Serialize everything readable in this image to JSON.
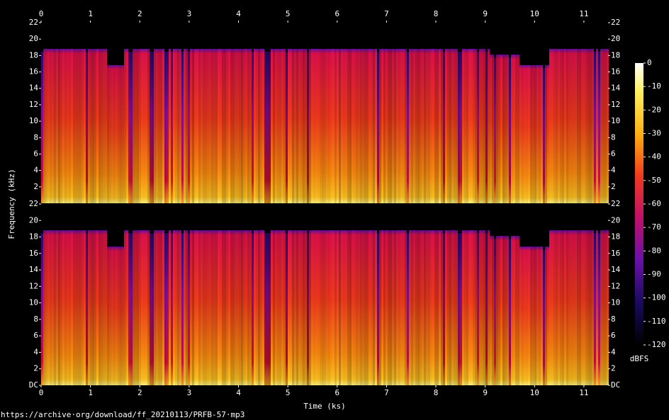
{
  "chart_data": [
    {
      "type": "spectrogram",
      "xlim": [
        0,
        11.49
      ],
      "xticks": [
        0,
        1,
        2,
        3,
        4,
        5,
        6,
        7,
        8,
        9,
        10,
        11
      ],
      "ylim": [
        0,
        22
      ],
      "yticks": [
        2,
        4,
        6,
        8,
        10,
        12,
        14,
        16,
        18,
        20,
        22
      ]
    },
    {
      "type": "spectrogram",
      "xlim": [
        0,
        11.49
      ],
      "xticks": [
        0,
        1,
        2,
        3,
        4,
        5,
        6,
        7,
        8,
        9,
        10,
        11
      ],
      "ylim": [
        0,
        22
      ],
      "yticks": [
        {
          "value": 0,
          "label": "DC"
        },
        2,
        4,
        6,
        8,
        10,
        12,
        14,
        16,
        18,
        20,
        22
      ]
    }
  ],
  "x_label": "Time (ks)",
  "y_label": "Frequency (kHz)",
  "colorbar": {
    "label": "dBFS",
    "lim": [
      -120,
      0
    ],
    "ticks": [
      0,
      -10,
      -20,
      -30,
      -40,
      -50,
      -60,
      -70,
      -80,
      -90,
      -100,
      -110,
      -120
    ]
  },
  "source": "https://archive·org/download/ff_20210113/PRFB-57·mp3"
}
